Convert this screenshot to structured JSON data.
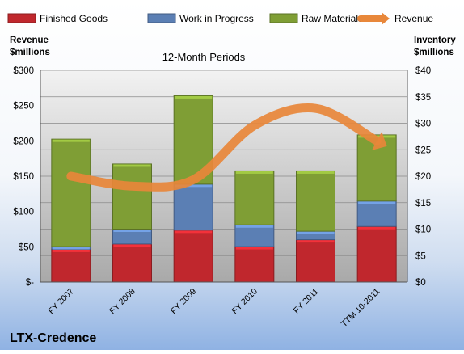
{
  "chart_data": {
    "type": "bar",
    "title": "12-Month Periods",
    "company": "LTX-Credence",
    "categories": [
      "FY 2007",
      "FY 2008",
      "FY 2009",
      "FY 2010",
      "FY 2011",
      "TTM 10-2011"
    ],
    "stacked": true,
    "series": [
      {
        "name": "Finished Goods",
        "axis": "right",
        "color": "#c0272d",
        "values": [
          6.2,
          7.2,
          9.8,
          6.7,
          8.0,
          10.5
        ]
      },
      {
        "name": "Work in Progress",
        "axis": "right",
        "color": "#5b7fb4",
        "values": [
          0.5,
          2.8,
          8.7,
          4.1,
          1.6,
          4.8
        ]
      },
      {
        "name": "Raw Materials",
        "axis": "right",
        "color": "#7f9e35",
        "values": [
          20.3,
          12.3,
          16.7,
          10.2,
          11.4,
          12.5
        ]
      },
      {
        "name": "Revenue",
        "type": "line",
        "axis": "left",
        "color": "#e8873a",
        "values": [
          150,
          136,
          145,
          222,
          246,
          200
        ]
      }
    ],
    "y_left": {
      "label_line1": "Revenue",
      "label_line2": "$millions",
      "range": [
        0,
        300
      ],
      "ticks": [
        "$-",
        "$50",
        "$100",
        "$150",
        "$200",
        "$250",
        "$300"
      ]
    },
    "y_right": {
      "label_line1": "Inventory",
      "label_line2": "$millions",
      "range": [
        0,
        40
      ],
      "ticks": [
        "$0",
        "$5",
        "$10",
        "$15",
        "$20",
        "$25",
        "$30",
        "$35",
        "$40"
      ]
    },
    "grid": true,
    "legend_position": "top"
  }
}
